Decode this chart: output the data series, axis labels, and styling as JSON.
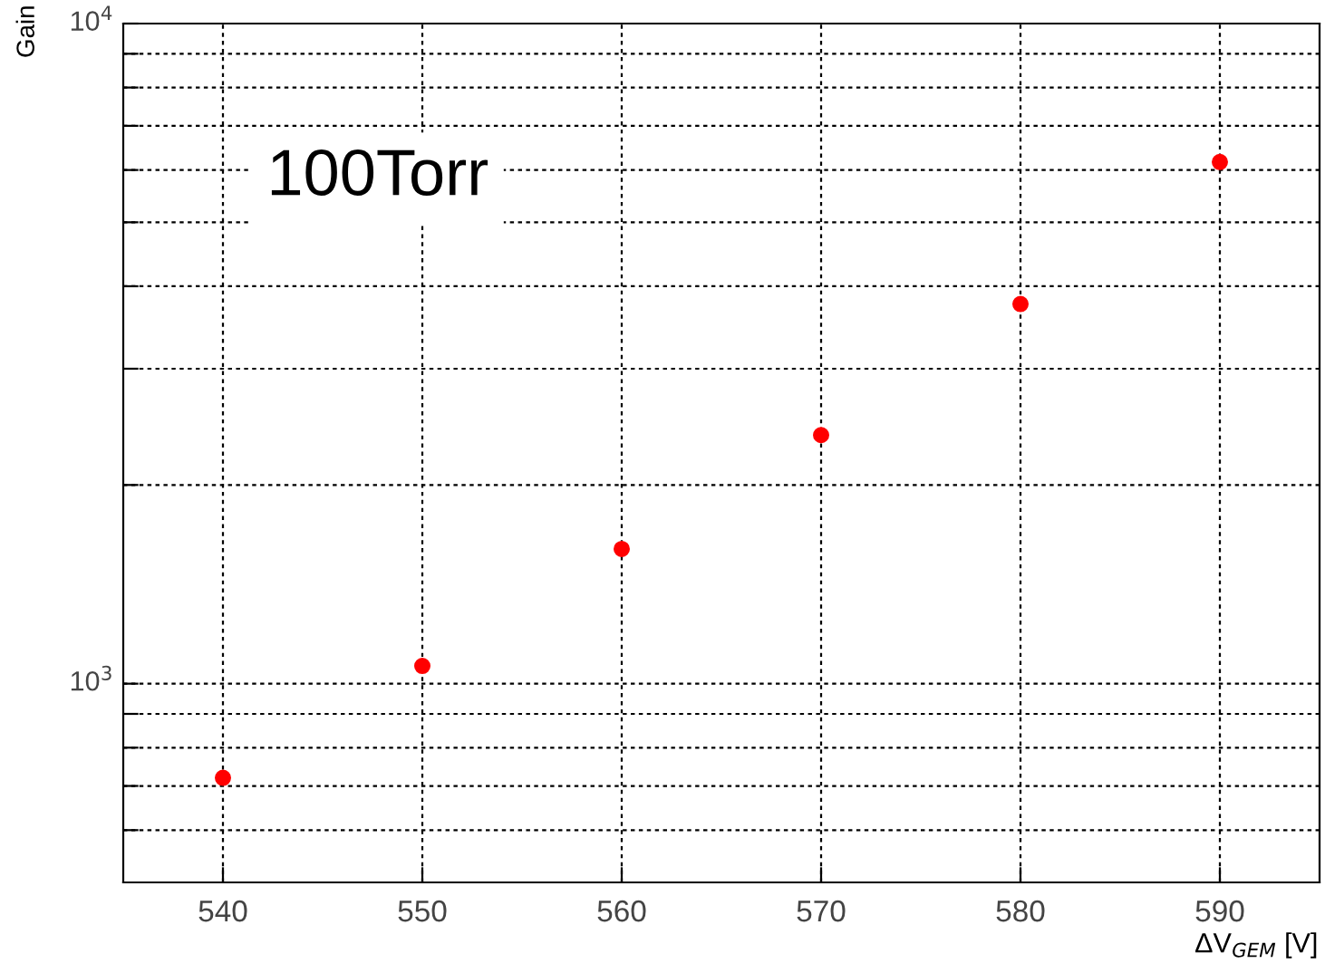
{
  "chart_data": {
    "type": "scatter",
    "xlabel": "ΔV$_{GEM}$ [V]",
    "ylabel": "Gain",
    "x": [
      540,
      550,
      560,
      570,
      580,
      590
    ],
    "series": [
      {
        "color": "#ff0000",
        "values": [
          720,
          1064,
          1600,
          2380,
          3760,
          6170
        ]
      }
    ],
    "xlim": [
      535,
      595
    ],
    "xticks": [
      540,
      550,
      560,
      570,
      580,
      590
    ],
    "ylim": [
      500,
      10000
    ],
    "yticks": [
      {
        "value": 600,
        "label": null
      },
      {
        "value": 700,
        "label": null
      },
      {
        "value": 800,
        "label": null
      },
      {
        "value": 900,
        "label": null
      },
      {
        "value": 1000,
        "label": "10$^{3}$"
      },
      {
        "value": 2000,
        "label": null
      },
      {
        "value": 3000,
        "label": null
      },
      {
        "value": 4000,
        "label": null
      },
      {
        "value": 5000,
        "label": null
      },
      {
        "value": 6000,
        "label": null
      },
      {
        "value": 7000,
        "label": null
      },
      {
        "value": 8000,
        "label": null
      },
      {
        "value": 9000,
        "label": null
      },
      {
        "value": 10000,
        "label": "10$^{4}$"
      }
    ],
    "log": true,
    "grid": true,
    "marker": "circle",
    "annotations": [
      "100Torr"
    ]
  }
}
